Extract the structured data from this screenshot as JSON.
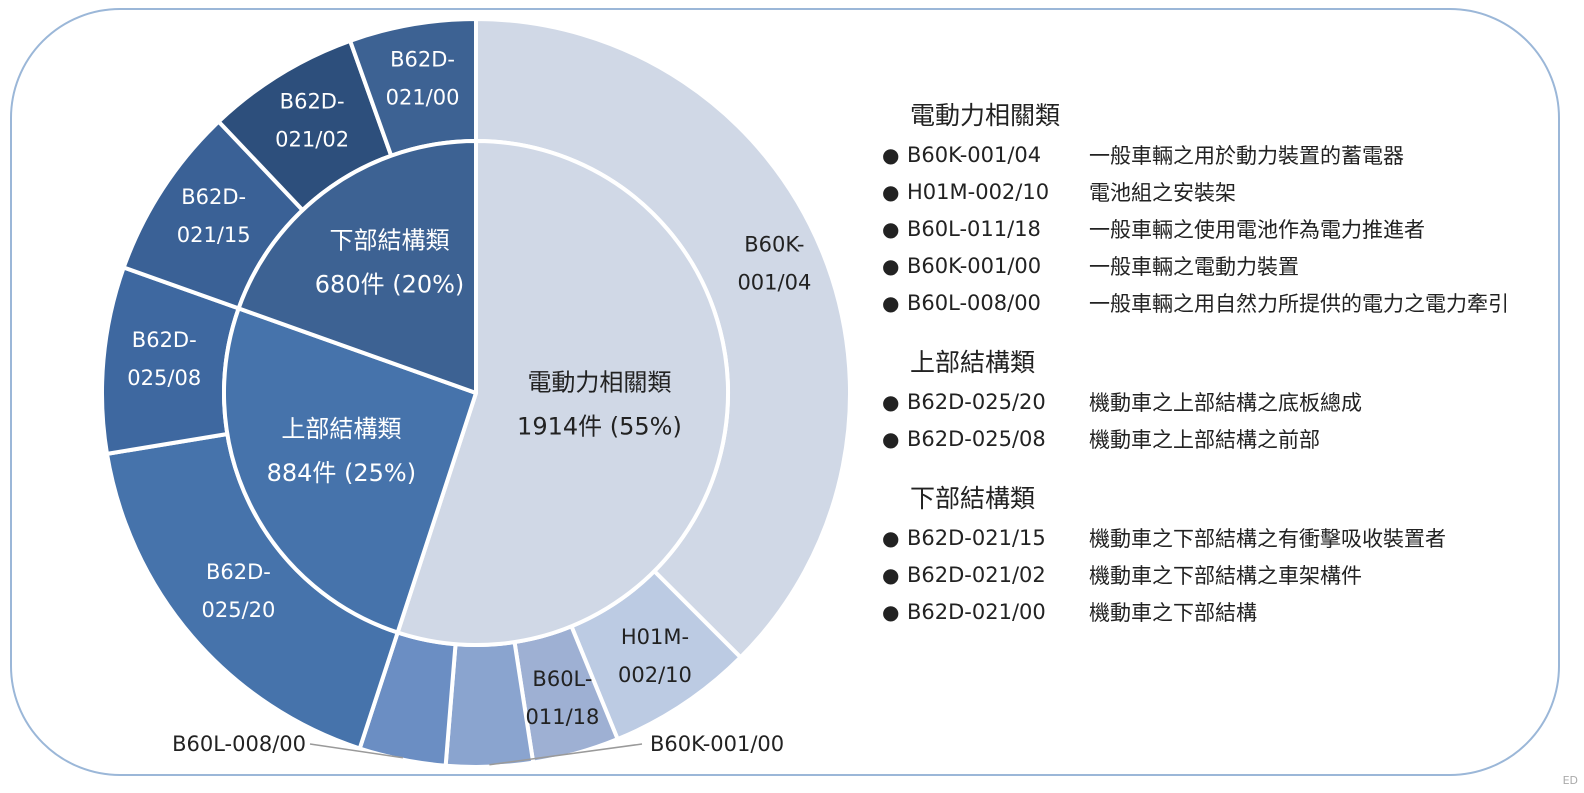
{
  "chart_data": {
    "type": "pie",
    "style": "nested-donut",
    "inner": [
      {
        "name": "電動力相關類",
        "label": "1914件 (55%)",
        "value": 1914,
        "color": "#d0d8e6"
      },
      {
        "name": "上部結構類",
        "label": "884件 (25%)",
        "value": 884,
        "color": "#4673ab"
      },
      {
        "name": "下部結構類",
        "label": "680件 (20%)",
        "value": 680,
        "color": "#3d6293"
      }
    ],
    "outer": [
      {
        "name": "B60K-001/04",
        "display": [
          "B60K-",
          "001/04"
        ],
        "value": 1304,
        "color": "#d0d8e6",
        "label_pos": "inside"
      },
      {
        "name": "H01M-002/10",
        "display": [
          "H01M-",
          "002/10"
        ],
        "value": 220,
        "color": "#bccbe3",
        "label_pos": "inside"
      },
      {
        "name": "B60L-011/18",
        "display": [
          "B60L-",
          "011/18"
        ],
        "value": 130,
        "color": "#9eb0d3",
        "label_pos": "inside"
      },
      {
        "name": "B60K-001/00",
        "display": [
          "B60K-001/00"
        ],
        "value": 130,
        "color": "#8aa4cf",
        "label_pos": "leader-right"
      },
      {
        "name": "B60L-008/00",
        "display": [
          "B60L-008/00"
        ],
        "value": 130,
        "color": "#6b8ec3",
        "label_pos": "leader-left"
      },
      {
        "name": "B62D-025/20",
        "display": [
          "B62D-",
          "025/20"
        ],
        "value": 604,
        "color": "#4673ab",
        "label_pos": "inside"
      },
      {
        "name": "B62D-025/08",
        "display": [
          "B62D-",
          "025/08"
        ],
        "value": 280,
        "color": "#3e68a0",
        "label_pos": "inside"
      },
      {
        "name": "B62D-021/15",
        "display": [
          "B62D-",
          "021/15"
        ],
        "value": 260,
        "color": "#3a6196",
        "label_pos": "inside"
      },
      {
        "name": "B62D-021/02",
        "display": [
          "B62D-",
          "021/02"
        ],
        "value": 230,
        "color": "#2d4f7c",
        "label_pos": "inside"
      },
      {
        "name": "B62D-021/00",
        "display": [
          "B62D-",
          "021/00"
        ],
        "value": 190,
        "color": "#3d6293",
        "label_pos": "inside"
      }
    ]
  },
  "legend": {
    "groups": [
      {
        "title": "電動力相關類",
        "items": [
          {
            "code": "B60K-001/04",
            "desc": "一般車輛之用於動力裝置的蓄電器"
          },
          {
            "code": "H01M-002/10",
            "desc": "電池組之安裝架"
          },
          {
            "code": "B60L-011/18",
            "desc": "一般車輛之使用電池作為電力推進者"
          },
          {
            "code": "B60K-001/00",
            "desc": "一般車輛之電動力裝置"
          },
          {
            "code": "B60L-008/00",
            "desc": "一般車輛之用自然力所提供的電力之電力牽引"
          }
        ]
      },
      {
        "title": "上部結構類",
        "items": [
          {
            "code": "B62D-025/20",
            "desc": "機動車之上部結構之底板總成"
          },
          {
            "code": "B62D-025/08",
            "desc": "機動車之上部結構之前部"
          }
        ]
      },
      {
        "title": "下部結構類",
        "items": [
          {
            "code": "B62D-021/15",
            "desc": "機動車之下部結構之有衝擊吸收裝置者"
          },
          {
            "code": "B62D-021/02",
            "desc": "機動車之下部結構之車架構件"
          },
          {
            "code": "B62D-021/00",
            "desc": "機動車之下部結構"
          }
        ]
      }
    ]
  },
  "corner_mark": "ED"
}
